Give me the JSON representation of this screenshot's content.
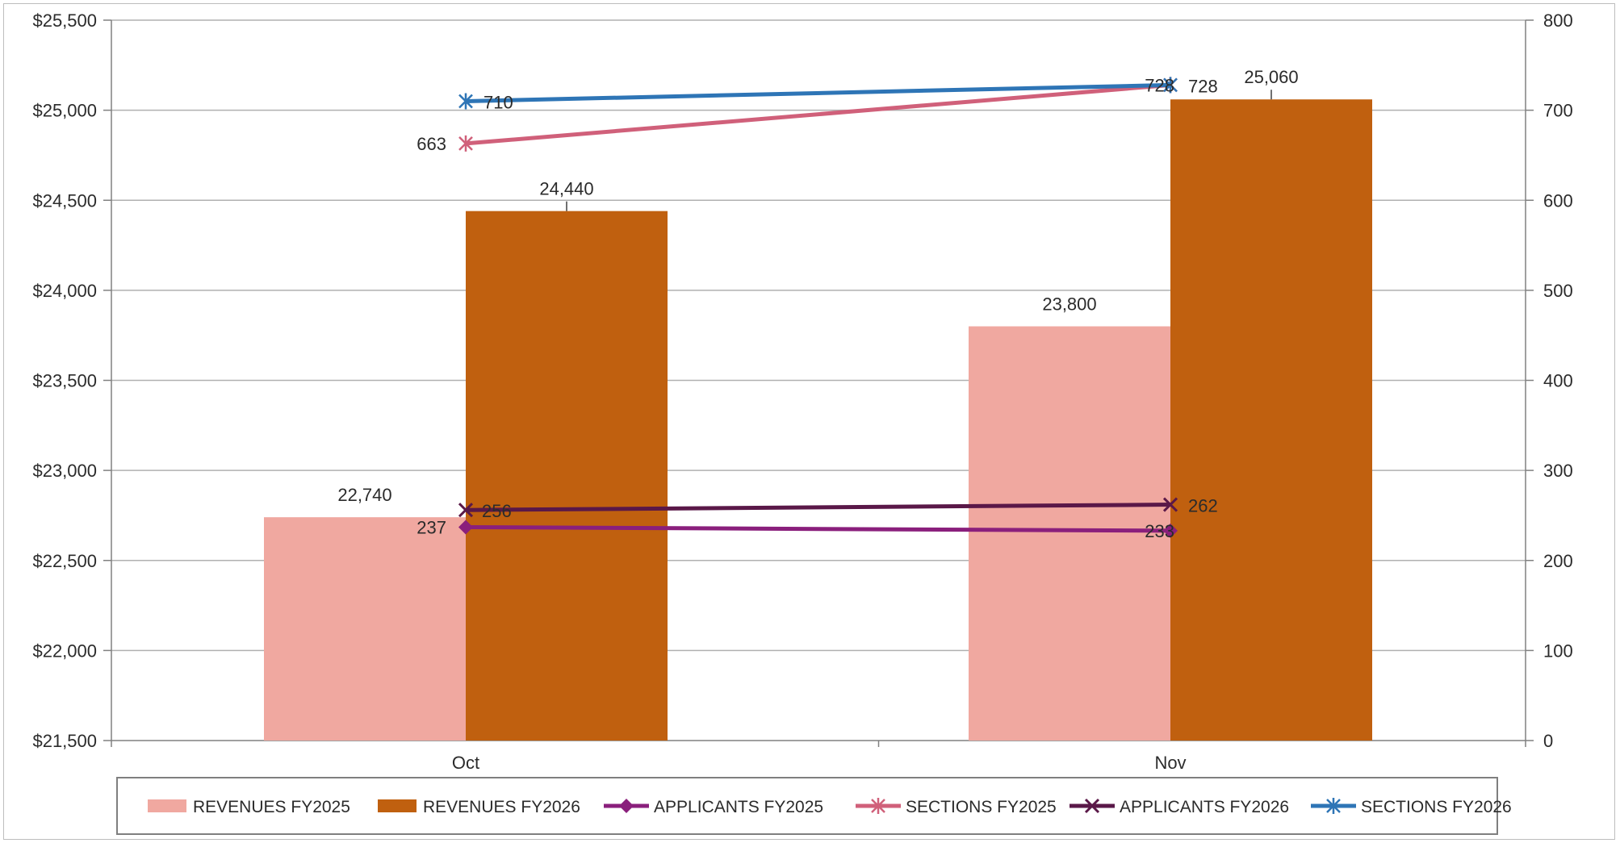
{
  "chart_data": {
    "type": "bar",
    "categories": [
      "Oct",
      "Nov"
    ],
    "y_left": {
      "range": [
        21500,
        25500
      ],
      "ticks": [
        "$21,500",
        "$22,000",
        "$22,500",
        "$23,000",
        "$23,500",
        "$24,000",
        "$24,500",
        "$25,000",
        "$25,500"
      ]
    },
    "y_right": {
      "range": [
        0,
        800
      ],
      "ticks": [
        "0",
        "100",
        "200",
        "300",
        "400",
        "500",
        "600",
        "700",
        "800"
      ]
    },
    "grid": true,
    "legend_position": "bottom",
    "series": [
      {
        "name": "REVENUES FY2025",
        "kind": "bar",
        "axis": "left",
        "color": "#f0a8a0",
        "values": [
          22740,
          23800
        ],
        "labels": [
          "22,740",
          "23,800"
        ]
      },
      {
        "name": "REVENUES FY2026",
        "kind": "bar",
        "axis": "left",
        "color": "#c0600f",
        "values": [
          24440,
          25060
        ],
        "labels": [
          "24,440",
          "25,060"
        ]
      },
      {
        "name": "APPLICANTS FY2025",
        "kind": "line",
        "axis": "right",
        "color": "#8a1f7c",
        "marker": "diamond",
        "values": [
          237,
          233
        ],
        "labels": [
          "237",
          "233"
        ]
      },
      {
        "name": "SECTIONS FY2025",
        "kind": "line",
        "axis": "right",
        "color": "#d0607a",
        "marker": "asterisk",
        "values": [
          663,
          728
        ],
        "labels": [
          "663",
          "728"
        ]
      },
      {
        "name": "APPLICANTS FY2026",
        "kind": "line",
        "axis": "right",
        "color": "#5a1848",
        "marker": "x",
        "values": [
          256,
          262
        ],
        "labels": [
          "256",
          "262"
        ]
      },
      {
        "name": "SECTIONS FY2026",
        "kind": "line",
        "axis": "right",
        "color": "#2e75b6",
        "marker": "asterisk",
        "values": [
          710,
          728
        ],
        "labels": [
          "710",
          "728"
        ]
      }
    ]
  }
}
